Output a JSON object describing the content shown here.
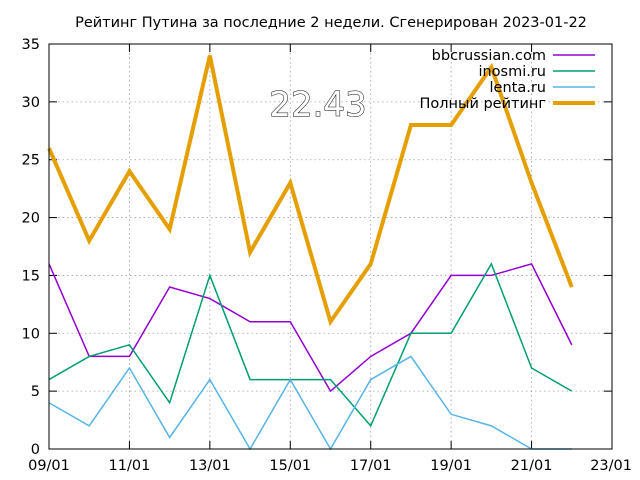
{
  "chart_data": {
    "type": "line",
    "title": "Рейтинг Путина за последние 2 недели. Сгенерирован 2023-01-22",
    "xlabel": "",
    "ylabel": "",
    "x_dates": [
      "09/01",
      "10/01",
      "11/01",
      "12/01",
      "13/01",
      "14/01",
      "15/01",
      "16/01",
      "17/01",
      "18/01",
      "19/01",
      "20/01",
      "21/01",
      "22/01"
    ],
    "x_tick_labels": [
      "09/01",
      "11/01",
      "13/01",
      "15/01",
      "17/01",
      "19/01",
      "21/01",
      "23/01"
    ],
    "xlim": [
      "09/01",
      "23/01"
    ],
    "ylim": [
      0,
      35
    ],
    "y_ticks": [
      0,
      5,
      10,
      15,
      20,
      25,
      30,
      35
    ],
    "grid": true,
    "legend_position": "top-right",
    "annotation": "22.43",
    "series": [
      {
        "name": "bbcrussian.com",
        "color": "#9400d3",
        "values": [
          16,
          8,
          8,
          14,
          13,
          11,
          11,
          5,
          8,
          10,
          15,
          15,
          16,
          9
        ]
      },
      {
        "name": "inosmi.ru",
        "color": "#009e73",
        "values": [
          6,
          8,
          9,
          4,
          15,
          6,
          6,
          6,
          2,
          10,
          10,
          16,
          7,
          5
        ]
      },
      {
        "name": "lenta.ru",
        "color": "#56b4e9",
        "values": [
          4,
          2,
          7,
          1,
          6,
          0,
          6,
          0,
          6,
          8,
          3,
          2,
          0,
          0
        ]
      },
      {
        "name": "Полный рейтинг",
        "color": "#e69f00",
        "values": [
          26,
          18,
          24,
          19,
          34,
          17,
          23,
          11,
          16,
          28,
          28,
          33,
          23,
          14
        ]
      }
    ]
  }
}
